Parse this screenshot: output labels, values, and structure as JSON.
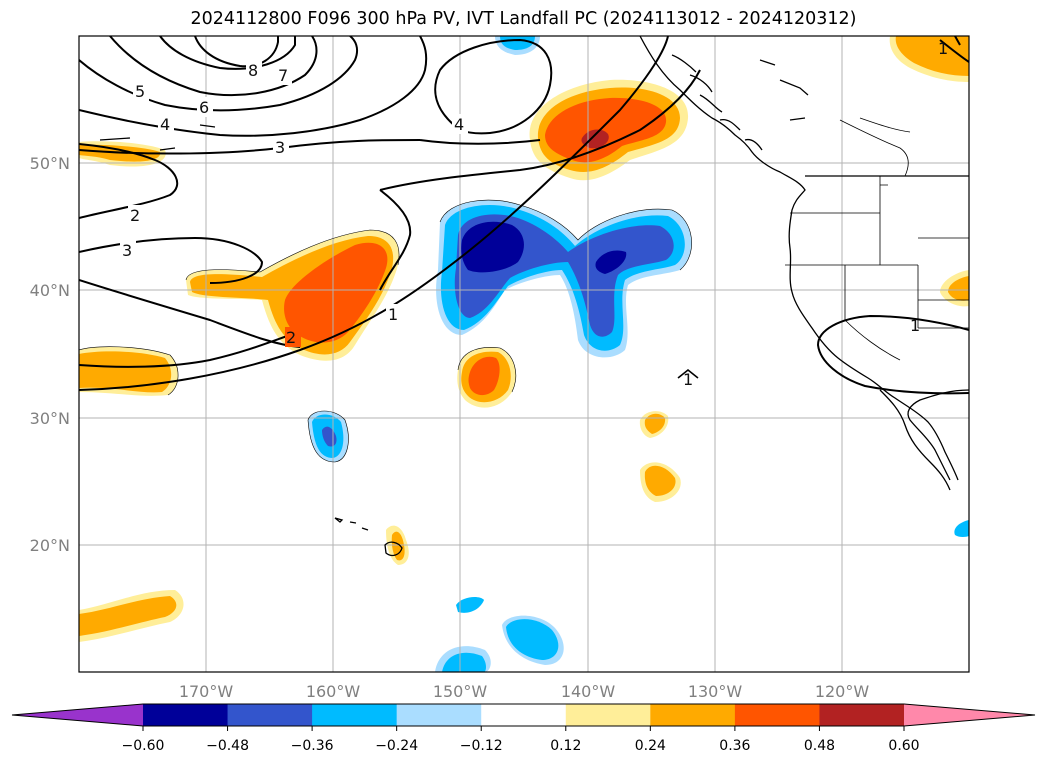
{
  "title": "2024112800 F096 300 hPa PV, IVT Landfall PC (2024113012 - 2024120312)",
  "map": {
    "lon_range": [
      -180,
      -110
    ],
    "lat_range": [
      10,
      60
    ],
    "lat_labels": [
      "20°N",
      "30°N",
      "40°N",
      "50°N"
    ],
    "lon_labels": [
      "170°W",
      "160°W",
      "150°W",
      "140°W",
      "130°W",
      "120°W"
    ],
    "gridlines": true,
    "contour_labels": [
      "1",
      "1",
      "1",
      "2",
      "2",
      "3",
      "3",
      "4",
      "4",
      "5",
      "6",
      "7",
      "8",
      "1"
    ]
  },
  "colorbar": {
    "ticks": [
      "−0.60",
      "−0.48",
      "−0.36",
      "−0.24",
      "−0.12",
      "0.12",
      "0.24",
      "0.36",
      "0.48",
      "0.60"
    ],
    "colors": [
      "#9933cc",
      "#000099",
      "#3355cc",
      "#00bbff",
      "#aaddff",
      "#ffffff",
      "#ffee99",
      "#ffaa00",
      "#ff5500",
      "#b22222",
      "#ff88aa"
    ],
    "extend": "both"
  }
}
